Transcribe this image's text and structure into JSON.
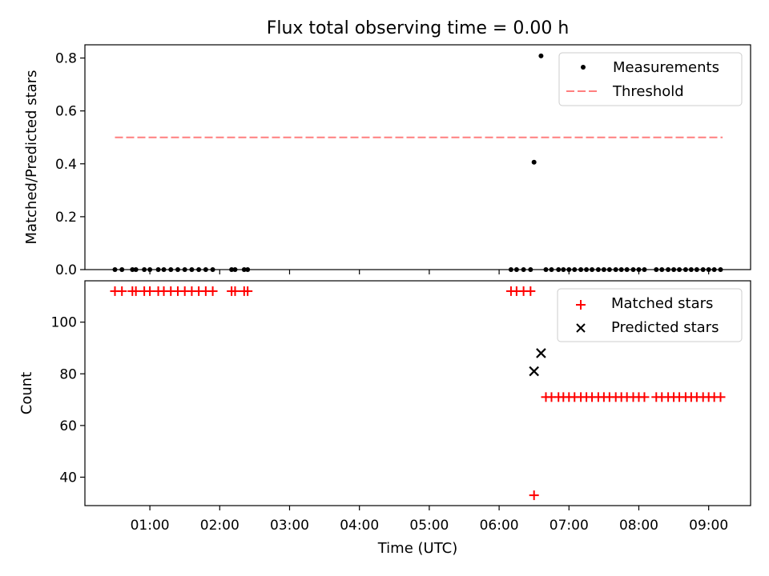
{
  "chart_data": [
    {
      "type": "scatter",
      "title": "Flux total observing time = 0.00 h",
      "xlabel": "",
      "ylabel": "Matched/Predicted stars",
      "xlim": [
        0.07,
        9.6
      ],
      "ylim": [
        0.0,
        0.85
      ],
      "yticks": [
        0.0,
        0.2,
        0.4,
        0.6,
        0.8
      ],
      "ytick_labels": [
        "0.0",
        "0.2",
        "0.4",
        "0.6",
        "0.8"
      ],
      "x_unit": "hours UTC",
      "legend_position": "upper right",
      "series": [
        {
          "name": "Measurements",
          "marker": "dot",
          "color": "#000000",
          "points": [
            [
              0.5,
              0
            ],
            [
              0.6,
              0
            ],
            [
              0.75,
              0
            ],
            [
              0.8,
              0
            ],
            [
              0.92,
              0
            ],
            [
              1.0,
              0
            ],
            [
              1.12,
              0
            ],
            [
              1.2,
              0
            ],
            [
              1.3,
              0
            ],
            [
              1.4,
              0
            ],
            [
              1.5,
              0
            ],
            [
              1.6,
              0
            ],
            [
              1.7,
              0
            ],
            [
              1.8,
              0
            ],
            [
              1.9,
              0
            ],
            [
              2.17,
              0
            ],
            [
              2.22,
              0
            ],
            [
              2.35,
              0
            ],
            [
              2.4,
              0
            ],
            [
              6.17,
              0
            ],
            [
              6.25,
              0
            ],
            [
              6.35,
              0
            ],
            [
              6.45,
              0
            ],
            [
              6.5,
              0.406
            ],
            [
              6.6,
              0.808
            ],
            [
              6.67,
              0
            ],
            [
              6.75,
              0
            ],
            [
              6.85,
              0
            ],
            [
              6.92,
              0
            ],
            [
              7.0,
              0
            ],
            [
              7.08,
              0
            ],
            [
              7.17,
              0
            ],
            [
              7.25,
              0
            ],
            [
              7.33,
              0
            ],
            [
              7.42,
              0
            ],
            [
              7.5,
              0
            ],
            [
              7.58,
              0
            ],
            [
              7.67,
              0
            ],
            [
              7.75,
              0
            ],
            [
              7.83,
              0
            ],
            [
              7.92,
              0
            ],
            [
              8.0,
              0
            ],
            [
              8.08,
              0
            ],
            [
              8.25,
              0
            ],
            [
              8.33,
              0
            ],
            [
              8.42,
              0
            ],
            [
              8.5,
              0
            ],
            [
              8.58,
              0
            ],
            [
              8.67,
              0
            ],
            [
              8.75,
              0
            ],
            [
              8.83,
              0
            ],
            [
              8.92,
              0
            ],
            [
              9.0,
              0
            ],
            [
              9.08,
              0
            ],
            [
              9.17,
              0
            ]
          ]
        },
        {
          "name": "Threshold",
          "style": "dashed-line",
          "color": "#ff7f7f",
          "x": [
            0.5,
            9.2
          ],
          "y": [
            0.5,
            0.5
          ]
        }
      ]
    },
    {
      "type": "scatter",
      "title": "",
      "xlabel": "Time (UTC)",
      "ylabel": "Count",
      "xlim": [
        0.07,
        9.6
      ],
      "ylim": [
        29,
        116
      ],
      "yticks": [
        40,
        60,
        80,
        100
      ],
      "ytick_labels": [
        "40",
        "60",
        "80",
        "100"
      ],
      "xticks": [
        1,
        2,
        3,
        4,
        5,
        6,
        7,
        8,
        9
      ],
      "xtick_labels": [
        "01:00",
        "02:00",
        "03:00",
        "04:00",
        "05:00",
        "06:00",
        "07:00",
        "08:00",
        "09:00"
      ],
      "x_unit": "hours UTC",
      "legend_position": "upper right",
      "series": [
        {
          "name": "Matched stars",
          "marker": "plus",
          "color": "#ff0000",
          "points": [
            [
              0.5,
              112
            ],
            [
              0.6,
              112
            ],
            [
              0.75,
              112
            ],
            [
              0.8,
              112
            ],
            [
              0.92,
              112
            ],
            [
              1.0,
              112
            ],
            [
              1.12,
              112
            ],
            [
              1.2,
              112
            ],
            [
              1.3,
              112
            ],
            [
              1.4,
              112
            ],
            [
              1.5,
              112
            ],
            [
              1.6,
              112
            ],
            [
              1.7,
              112
            ],
            [
              1.8,
              112
            ],
            [
              1.9,
              112
            ],
            [
              2.17,
              112
            ],
            [
              2.22,
              112
            ],
            [
              2.35,
              112
            ],
            [
              2.4,
              112
            ],
            [
              6.17,
              112
            ],
            [
              6.25,
              112
            ],
            [
              6.35,
              112
            ],
            [
              6.45,
              112
            ],
            [
              6.5,
              33
            ],
            [
              6.67,
              71
            ],
            [
              6.75,
              71
            ],
            [
              6.85,
              71
            ],
            [
              6.92,
              71
            ],
            [
              7.0,
              71
            ],
            [
              7.08,
              71
            ],
            [
              7.17,
              71
            ],
            [
              7.25,
              71
            ],
            [
              7.33,
              71
            ],
            [
              7.42,
              71
            ],
            [
              7.5,
              71
            ],
            [
              7.58,
              71
            ],
            [
              7.67,
              71
            ],
            [
              7.75,
              71
            ],
            [
              7.83,
              71
            ],
            [
              7.92,
              71
            ],
            [
              8.0,
              71
            ],
            [
              8.08,
              71
            ],
            [
              8.25,
              71
            ],
            [
              8.33,
              71
            ],
            [
              8.42,
              71
            ],
            [
              8.5,
              71
            ],
            [
              8.58,
              71
            ],
            [
              8.67,
              71
            ],
            [
              8.75,
              71
            ],
            [
              8.83,
              71
            ],
            [
              8.92,
              71
            ],
            [
              9.0,
              71
            ],
            [
              9.08,
              71
            ],
            [
              9.17,
              71
            ]
          ]
        },
        {
          "name": "Predicted stars",
          "marker": "x",
          "color": "#000000",
          "points": [
            [
              6.5,
              81
            ],
            [
              6.6,
              88
            ]
          ]
        }
      ]
    }
  ]
}
